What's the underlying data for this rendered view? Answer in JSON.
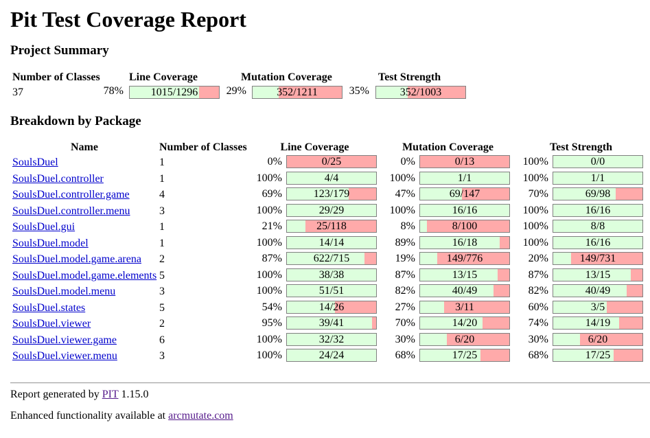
{
  "title": "Pit Test Coverage Report",
  "project_summary": {
    "heading": "Project Summary",
    "headers": {
      "classes": "Number of Classes",
      "line": "Line Coverage",
      "mutation": "Mutation Coverage",
      "strength": "Test Strength"
    },
    "classes": "37",
    "line": {
      "pct": "78%",
      "label": "1015/1296",
      "fraction": 0.78
    },
    "mutation": {
      "pct": "29%",
      "label": "352/1211",
      "fraction": 0.29
    },
    "strength": {
      "pct": "35%",
      "label": "352/1003",
      "fraction": 0.35
    }
  },
  "breakdown": {
    "heading": "Breakdown by Package",
    "headers": {
      "name": "Name",
      "classes": "Number of Classes",
      "line": "Line Coverage",
      "mutation": "Mutation Coverage",
      "strength": "Test Strength"
    },
    "rows": [
      {
        "name": "SoulsDuel",
        "classes": "1",
        "line": {
          "pct": "0%",
          "label": "0/25",
          "fraction": 0.0
        },
        "mutation": {
          "pct": "0%",
          "label": "0/13",
          "fraction": 0.0
        },
        "strength": {
          "pct": "100%",
          "label": "0/0",
          "fraction": 1.0
        }
      },
      {
        "name": "SoulsDuel.controller",
        "classes": "1",
        "line": {
          "pct": "100%",
          "label": "4/4",
          "fraction": 1.0
        },
        "mutation": {
          "pct": "100%",
          "label": "1/1",
          "fraction": 1.0
        },
        "strength": {
          "pct": "100%",
          "label": "1/1",
          "fraction": 1.0
        }
      },
      {
        "name": "SoulsDuel.controller.game",
        "classes": "4",
        "line": {
          "pct": "69%",
          "label": "123/179",
          "fraction": 0.69
        },
        "mutation": {
          "pct": "47%",
          "label": "69/147",
          "fraction": 0.47
        },
        "strength": {
          "pct": "70%",
          "label": "69/98",
          "fraction": 0.7
        }
      },
      {
        "name": "SoulsDuel.controller.menu",
        "classes": "3",
        "line": {
          "pct": "100%",
          "label": "29/29",
          "fraction": 1.0
        },
        "mutation": {
          "pct": "100%",
          "label": "16/16",
          "fraction": 1.0
        },
        "strength": {
          "pct": "100%",
          "label": "16/16",
          "fraction": 1.0
        }
      },
      {
        "name": "SoulsDuel.gui",
        "classes": "1",
        "line": {
          "pct": "21%",
          "label": "25/118",
          "fraction": 0.21
        },
        "mutation": {
          "pct": "8%",
          "label": "8/100",
          "fraction": 0.08
        },
        "strength": {
          "pct": "100%",
          "label": "8/8",
          "fraction": 1.0
        }
      },
      {
        "name": "SoulsDuel.model",
        "classes": "1",
        "line": {
          "pct": "100%",
          "label": "14/14",
          "fraction": 1.0
        },
        "mutation": {
          "pct": "89%",
          "label": "16/18",
          "fraction": 0.89
        },
        "strength": {
          "pct": "100%",
          "label": "16/16",
          "fraction": 1.0
        }
      },
      {
        "name": "SoulsDuel.model.game.arena",
        "classes": "2",
        "line": {
          "pct": "87%",
          "label": "622/715",
          "fraction": 0.87
        },
        "mutation": {
          "pct": "19%",
          "label": "149/776",
          "fraction": 0.19
        },
        "strength": {
          "pct": "20%",
          "label": "149/731",
          "fraction": 0.2
        }
      },
      {
        "name": "SoulsDuel.model.game.elements",
        "classes": "5",
        "line": {
          "pct": "100%",
          "label": "38/38",
          "fraction": 1.0
        },
        "mutation": {
          "pct": "87%",
          "label": "13/15",
          "fraction": 0.87
        },
        "strength": {
          "pct": "87%",
          "label": "13/15",
          "fraction": 0.87
        }
      },
      {
        "name": "SoulsDuel.model.menu",
        "classes": "3",
        "line": {
          "pct": "100%",
          "label": "51/51",
          "fraction": 1.0
        },
        "mutation": {
          "pct": "82%",
          "label": "40/49",
          "fraction": 0.82
        },
        "strength": {
          "pct": "82%",
          "label": "40/49",
          "fraction": 0.82
        }
      },
      {
        "name": "SoulsDuel.states",
        "classes": "5",
        "line": {
          "pct": "54%",
          "label": "14/26",
          "fraction": 0.54
        },
        "mutation": {
          "pct": "27%",
          "label": "3/11",
          "fraction": 0.27
        },
        "strength": {
          "pct": "60%",
          "label": "3/5",
          "fraction": 0.6
        }
      },
      {
        "name": "SoulsDuel.viewer",
        "classes": "2",
        "line": {
          "pct": "95%",
          "label": "39/41",
          "fraction": 0.95
        },
        "mutation": {
          "pct": "70%",
          "label": "14/20",
          "fraction": 0.7
        },
        "strength": {
          "pct": "74%",
          "label": "14/19",
          "fraction": 0.74
        }
      },
      {
        "name": "SoulsDuel.viewer.game",
        "classes": "6",
        "line": {
          "pct": "100%",
          "label": "32/32",
          "fraction": 1.0
        },
        "mutation": {
          "pct": "30%",
          "label": "6/20",
          "fraction": 0.3
        },
        "strength": {
          "pct": "30%",
          "label": "6/20",
          "fraction": 0.3
        }
      },
      {
        "name": "SoulsDuel.viewer.menu",
        "classes": "3",
        "line": {
          "pct": "100%",
          "label": "24/24",
          "fraction": 1.0
        },
        "mutation": {
          "pct": "68%",
          "label": "17/25",
          "fraction": 0.68
        },
        "strength": {
          "pct": "68%",
          "label": "17/25",
          "fraction": 0.68
        }
      }
    ]
  },
  "footer": {
    "generated_prefix": "Report generated by",
    "pit_link": "PIT",
    "version": "1.15.0",
    "enhanced_prefix": "Enhanced functionality available at",
    "arcmutate_link": "arcmutate.com"
  },
  "colors": {
    "covered": "#ddffdd",
    "uncovered": "#ffaaaa",
    "link": "#0000cc",
    "visited_link": "#551a8b"
  }
}
